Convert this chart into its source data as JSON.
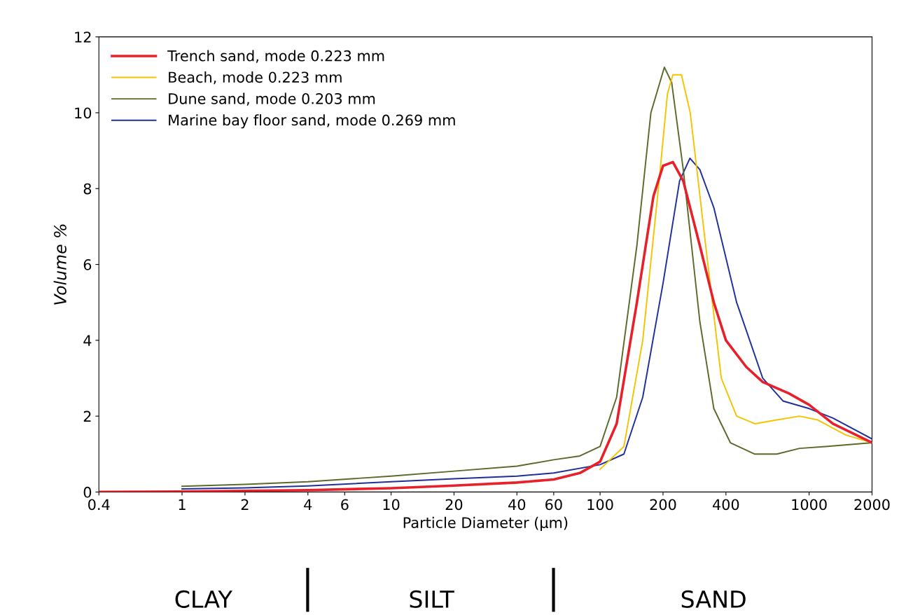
{
  "chart_data": {
    "type": "line",
    "xlabel": "Particle Diameter (µm)",
    "ylabel": "Volume %",
    "log": "x",
    "xlim": [
      0.4,
      2000
    ],
    "xticks": [
      0.4,
      1,
      2,
      4,
      6,
      10,
      20,
      40,
      60,
      100,
      200,
      400,
      1000,
      2000
    ],
    "ylim": [
      0,
      12
    ],
    "yticks": [
      0,
      2,
      4,
      6,
      8,
      10,
      12
    ],
    "grid": false,
    "legend": "top left",
    "marker": "none",
    "line_style": "solid",
    "series": [
      {
        "name": "Trench sand, mode 0.223 mm",
        "color": "#e8202a",
        "x": [
          0.4,
          1,
          2,
          4,
          10,
          20,
          40,
          60,
          80,
          100,
          120,
          150,
          180,
          200,
          223,
          250,
          300,
          350,
          400,
          500,
          600,
          800,
          1000,
          1300,
          2000
        ],
        "values": [
          0,
          0.01,
          0.03,
          0.05,
          0.1,
          0.17,
          0.25,
          0.33,
          0.5,
          0.8,
          1.8,
          5,
          7.8,
          8.6,
          8.7,
          8.2,
          6.5,
          5,
          4,
          3.3,
          2.9,
          2.6,
          2.3,
          1.8,
          1.3
        ]
      },
      {
        "name": "Beach, mode 0.223 mm",
        "color": "#f5c400",
        "x": [
          100,
          130,
          160,
          190,
          210,
          223,
          245,
          270,
          320,
          380,
          450,
          550,
          700,
          900,
          1100,
          1500,
          2000
        ],
        "values": [
          0.6,
          1.2,
          4,
          8,
          10.5,
          11,
          11,
          10,
          6.5,
          3,
          2,
          1.8,
          1.9,
          2.0,
          1.9,
          1.5,
          1.3
        ]
      },
      {
        "name": "Dune sand, mode 0.203 mm",
        "color": "#5a6a2a",
        "x": [
          1,
          2,
          4,
          10,
          20,
          40,
          60,
          80,
          100,
          120,
          150,
          175,
          203,
          220,
          250,
          300,
          350,
          420,
          550,
          700,
          900,
          1200,
          2000
        ],
        "values": [
          0.15,
          0.2,
          0.27,
          0.42,
          0.55,
          0.68,
          0.85,
          0.95,
          1.2,
          2.5,
          6.5,
          10,
          11.2,
          10.8,
          8.5,
          4.5,
          2.2,
          1.3,
          1.0,
          1.0,
          1.15,
          1.2,
          1.3
        ]
      },
      {
        "name": "Marine bay floor sand, mode 0.269 mm",
        "color": "#1f2f9a",
        "x": [
          1,
          2,
          4,
          10,
          20,
          40,
          60,
          100,
          130,
          160,
          200,
          240,
          269,
          300,
          350,
          450,
          600,
          750,
          1000,
          1300,
          2000
        ],
        "values": [
          0.08,
          0.11,
          0.16,
          0.27,
          0.35,
          0.42,
          0.5,
          0.72,
          1.0,
          2.5,
          5.5,
          8.2,
          8.8,
          8.5,
          7.5,
          5,
          3,
          2.4,
          2.2,
          1.95,
          1.4
        ]
      }
    ],
    "annotations": [
      "CLAY",
      "SILT",
      "SAND"
    ]
  }
}
